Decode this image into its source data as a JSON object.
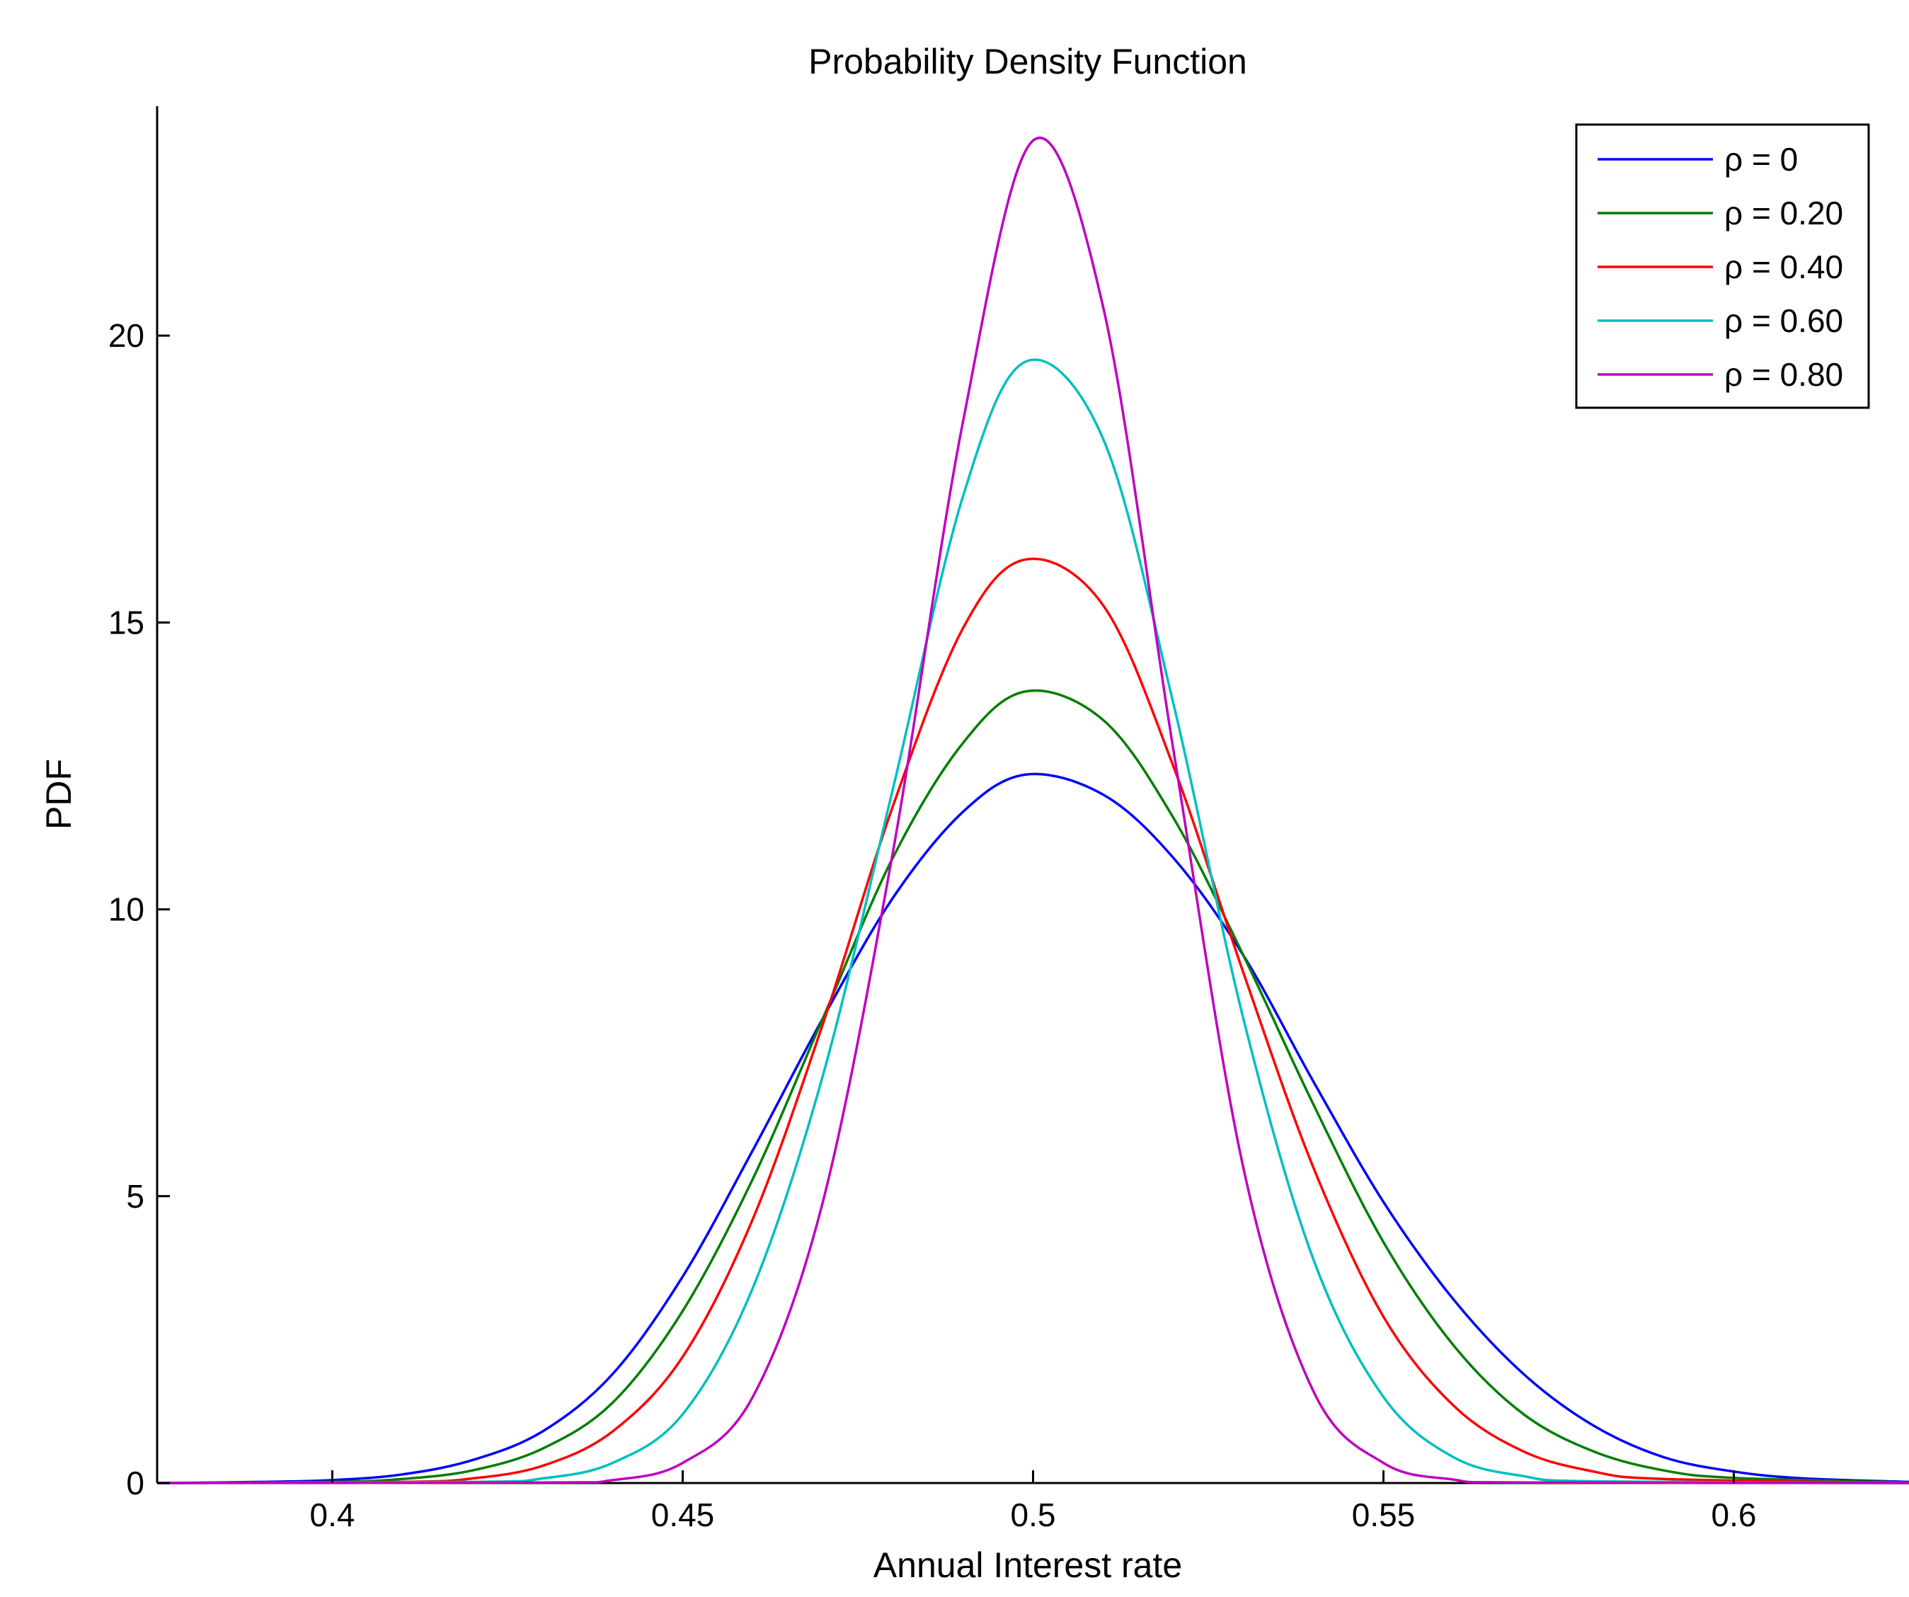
{
  "chart_data": {
    "type": "line",
    "title": "Probability Density Function",
    "xlabel": "Annual Interest rate",
    "ylabel": "PDF",
    "xlim": [
      0.375,
      0.625
    ],
    "ylim": [
      0,
      24
    ],
    "xticks": [
      0.4,
      0.45,
      0.5,
      0.55,
      0.6
    ],
    "xtick_labels": [
      "0.4",
      "0.45",
      "0.5",
      "0.55",
      "0.6"
    ],
    "yticks": [
      0,
      5,
      10,
      15,
      20
    ],
    "ytick_labels": [
      "0",
      "5",
      "10",
      "15",
      "20"
    ],
    "grid": false,
    "legend_position": "top-right",
    "series": [
      {
        "name": "ρ = 0",
        "color": "#0000ff",
        "x": [
          0.375,
          0.39,
          0.4,
          0.41,
          0.42,
          0.43,
          0.44,
          0.45,
          0.46,
          0.47,
          0.48,
          0.49,
          0.499,
          0.51,
          0.52,
          0.53,
          0.54,
          0.55,
          0.56,
          0.57,
          0.58,
          0.59,
          0.6,
          0.61,
          0.625
        ],
        "y": [
          0.0,
          0.02,
          0.05,
          0.15,
          0.4,
          0.9,
          1.9,
          3.6,
          5.8,
          8.1,
          10.2,
          11.7,
          12.35,
          12.0,
          10.9,
          9.2,
          7.0,
          4.9,
          3.2,
          1.9,
          1.0,
          0.45,
          0.2,
          0.08,
          0.02
        ]
      },
      {
        "name": "ρ = 0.20",
        "color": "#007f00",
        "x": [
          0.375,
          0.4,
          0.41,
          0.42,
          0.43,
          0.44,
          0.45,
          0.46,
          0.47,
          0.48,
          0.49,
          0.499,
          0.51,
          0.52,
          0.53,
          0.54,
          0.55,
          0.56,
          0.57,
          0.58,
          0.59,
          0.6,
          0.625
        ],
        "y": [
          0.0,
          0.02,
          0.07,
          0.22,
          0.6,
          1.4,
          3.0,
          5.3,
          8.1,
          10.9,
          12.9,
          13.8,
          13.3,
          11.6,
          9.2,
          6.6,
          4.2,
          2.4,
          1.2,
          0.55,
          0.22,
          0.09,
          0.01
        ]
      },
      {
        "name": "ρ = 0.40",
        "color": "#ff0000",
        "x": [
          0.375,
          0.41,
          0.42,
          0.43,
          0.44,
          0.45,
          0.46,
          0.47,
          0.48,
          0.49,
          0.499,
          0.51,
          0.52,
          0.53,
          0.54,
          0.55,
          0.56,
          0.57,
          0.58,
          0.59,
          0.625
        ],
        "y": [
          0.0,
          0.02,
          0.08,
          0.3,
          0.9,
          2.2,
          4.6,
          8.0,
          11.8,
          14.9,
          16.1,
          15.3,
          12.5,
          8.9,
          5.5,
          2.9,
          1.35,
          0.55,
          0.2,
          0.07,
          0.0
        ]
      },
      {
        "name": "ρ = 0.60",
        "color": "#00bfbf",
        "x": [
          0.375,
          0.42,
          0.43,
          0.44,
          0.45,
          0.46,
          0.47,
          0.48,
          0.49,
          0.499,
          0.51,
          0.52,
          0.53,
          0.54,
          0.55,
          0.56,
          0.57,
          0.58,
          0.625
        ],
        "y": [
          0.0,
          0.02,
          0.08,
          0.35,
          1.2,
          3.4,
          7.1,
          12.1,
          17.2,
          19.55,
          18.2,
          13.6,
          8.1,
          3.9,
          1.5,
          0.45,
          0.12,
          0.03,
          0.0
        ]
      },
      {
        "name": "ρ = 0.80",
        "color": "#bf00bf",
        "x": [
          0.375,
          0.43,
          0.44,
          0.45,
          0.46,
          0.47,
          0.48,
          0.49,
          0.5,
          0.51,
          0.52,
          0.53,
          0.54,
          0.55,
          0.56,
          0.57,
          0.625
        ],
        "y": [
          0.0,
          0.01,
          0.05,
          0.35,
          1.5,
          4.9,
          11.0,
          18.5,
          23.4,
          20.5,
          12.8,
          5.5,
          1.6,
          0.35,
          0.06,
          0.01,
          0.0
        ]
      }
    ]
  }
}
